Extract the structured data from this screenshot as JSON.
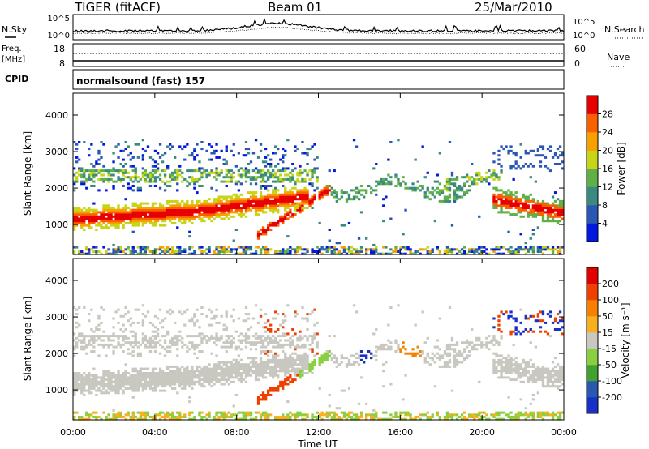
{
  "header": {
    "radar": "TIGER (fitACF)",
    "beam": "Beam 01",
    "date": "25/Mar/2010"
  },
  "top_panels": {
    "nsky_label": "N.Sky",
    "nsky_ticks": [
      "10^5",
      "10^0"
    ],
    "nsearch_ticks": [
      "10^5",
      "10^0"
    ],
    "nsearch_label": "N.Search",
    "freq_label": "Freq.",
    "freq_unit": "[MHz]",
    "freq_ticks": [
      "18",
      "8"
    ],
    "nave_ticks": [
      "60",
      "0"
    ],
    "nave_label": "Nave",
    "cpid_label": "CPID",
    "cpid_text": "normalsound (fast) 157"
  },
  "chart_data": [
    {
      "type": "heatmap",
      "name": "power-panel",
      "ylabel": "Slant Range [km]",
      "yticks": [
        "1000",
        "2000",
        "3000",
        "4000"
      ],
      "ylim": [
        180,
        4600
      ],
      "xlim": [
        0,
        24
      ],
      "colorbar": {
        "label": "Power [dB]",
        "ticks": [
          "4",
          "8",
          "12",
          "16",
          "20",
          "24",
          "28"
        ],
        "colors": [
          "#0018e0",
          "#2a56b4",
          "#3a8a82",
          "#60b048",
          "#c8d418",
          "#f8a000",
          "#f86000",
          "#e80000"
        ]
      }
    },
    {
      "type": "heatmap",
      "name": "velocity-panel",
      "ylabel": "Slant Range [km]",
      "yticks": [
        "1000",
        "2000",
        "3000",
        "4000"
      ],
      "ylim": [
        180,
        4600
      ],
      "xlim": [
        0,
        24
      ],
      "xlabel": "Time UT",
      "xticks": [
        "00:00",
        "04:00",
        "08:00",
        "12:00",
        "16:00",
        "20:00",
        "00:00"
      ],
      "colorbar": {
        "label": "Velocity [m s⁻¹]",
        "ticks": [
          "200",
          "100",
          "50",
          "15",
          "-15",
          "-50",
          "-100",
          "-200"
        ],
        "colors": [
          "#1830c8",
          "#2858b0",
          "#40a030",
          "#88d040",
          "#c8c8c0",
          "#f8b020",
          "#f88000",
          "#f04000",
          "#e00000"
        ]
      }
    }
  ]
}
